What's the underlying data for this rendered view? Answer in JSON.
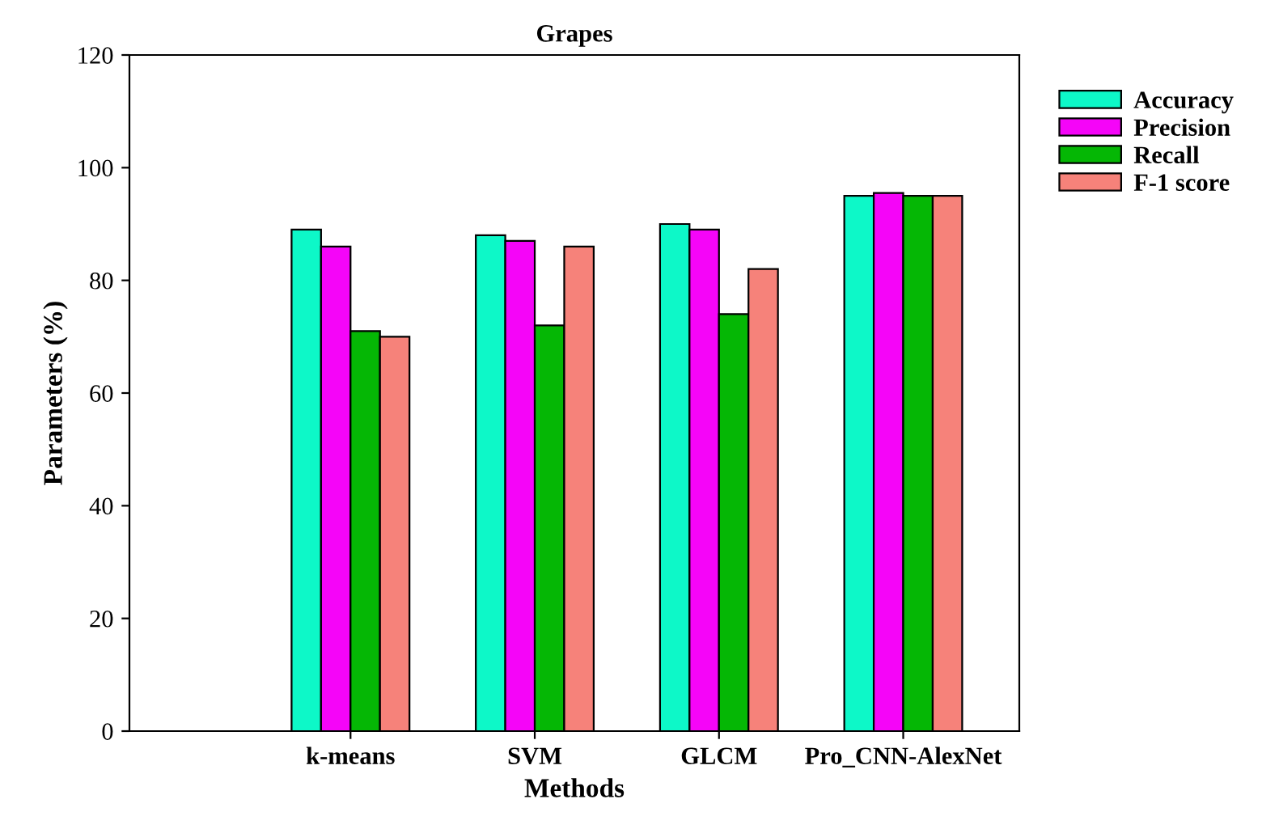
{
  "chart_data": {
    "type": "bar",
    "title": "Grapes",
    "xlabel": "Methods",
    "ylabel": "Parameters (%)",
    "categories": [
      "k-means",
      "SVM",
      "GLCM",
      "Pro_CNN-AlexNet"
    ],
    "series": [
      {
        "name": "Accuracy",
        "color": "#0df8c8",
        "values": [
          89,
          88,
          90,
          95
        ]
      },
      {
        "name": "Precision",
        "color": "#f505f8",
        "values": [
          86,
          87,
          89,
          95.5
        ]
      },
      {
        "name": "Recall",
        "color": "#05b705",
        "values": [
          71,
          72,
          74,
          95
        ]
      },
      {
        "name": "F-1 score",
        "color": "#f6827a",
        "values": [
          70,
          86,
          82,
          95
        ]
      }
    ],
    "ylim": [
      0,
      120
    ],
    "yticks": [
      0,
      20,
      40,
      60,
      80,
      100,
      120
    ],
    "grid": false,
    "legend": "top right"
  }
}
